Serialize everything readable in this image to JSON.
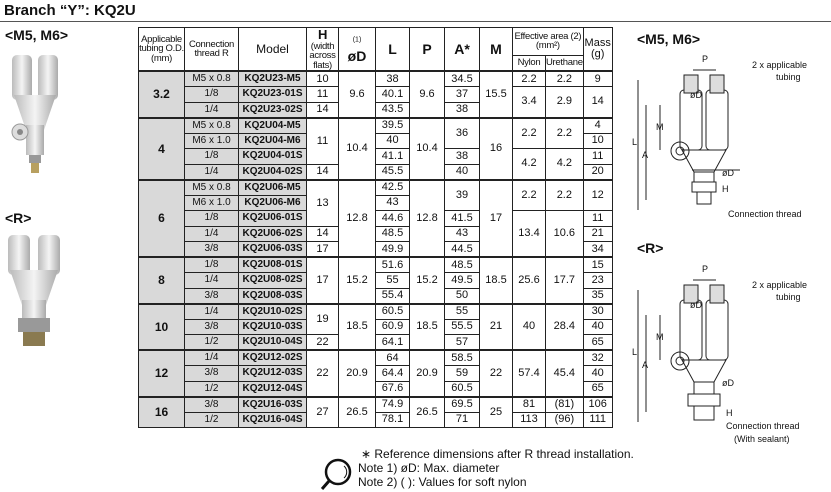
{
  "title": "Branch “Y”: KQ2U",
  "labels": {
    "m5m6": "<M5, M6>",
    "r": "<R>"
  },
  "headers": {
    "tubing": "Applicable tubing O.D. (mm)",
    "thread": "Connection thread R",
    "model": "Model",
    "h": "H",
    "h_sub": "(width across flats)",
    "d": "øD",
    "d_note": "(1)",
    "l": "L",
    "p": "P",
    "a": "A*",
    "m": "M",
    "eff": "Effective area (2) (mm²)",
    "nylon": "Nylon",
    "urethane": "Urethane",
    "mass": "Mass (g)"
  },
  "groups": [
    {
      "tubing": "3.2",
      "rows": [
        [
          "M5 x 0.8",
          "KQ2U23-M5",
          "38"
        ],
        [
          "1/8",
          "KQ2U23-01S",
          "40.1"
        ],
        [
          "1/4",
          "KQ2U23-02S",
          "43.5"
        ]
      ],
      "H": [
        [
          "10",
          1
        ],
        [
          "11",
          1
        ],
        [
          "14",
          1
        ]
      ],
      "D": [
        [
          "9.6",
          3
        ]
      ],
      "P": [
        [
          "9.6",
          3
        ]
      ],
      "A": [
        [
          "34.5",
          1
        ],
        [
          "37",
          1
        ],
        [
          "38",
          1
        ]
      ],
      "M": [
        [
          "15.5",
          3
        ]
      ],
      "nylon": [
        [
          "2.2",
          1
        ],
        [
          "3.4",
          2
        ]
      ],
      "urethane": [
        [
          "2.2",
          1
        ],
        [
          "2.9",
          2
        ]
      ],
      "mass": [
        [
          "9",
          1
        ],
        [
          "14",
          2
        ]
      ]
    },
    {
      "tubing": "4",
      "rows": [
        [
          "M5 x 0.8",
          "KQ2U04-M5",
          "39.5"
        ],
        [
          "M6 x 1.0",
          "KQ2U04-M6",
          "40"
        ],
        [
          "1/8",
          "KQ2U04-01S",
          "41.1"
        ],
        [
          "1/4",
          "KQ2U04-02S",
          "45.5"
        ]
      ],
      "H": [
        [
          "11",
          3
        ],
        [
          "14",
          1
        ]
      ],
      "D": [
        [
          "10.4",
          4
        ]
      ],
      "P": [
        [
          "10.4",
          4
        ]
      ],
      "A": [
        [
          "36",
          2
        ],
        [
          "38",
          1
        ],
        [
          "40",
          1
        ]
      ],
      "M": [
        [
          "16",
          4
        ]
      ],
      "nylon": [
        [
          "2.2",
          2
        ],
        [
          "4.2",
          2
        ]
      ],
      "urethane": [
        [
          "2.2",
          2
        ],
        [
          "4.2",
          2
        ]
      ],
      "mass": [
        [
          "4",
          1
        ],
        [
          "10",
          1
        ],
        [
          "11",
          1
        ],
        [
          "20",
          1
        ]
      ]
    },
    {
      "tubing": "6",
      "rows": [
        [
          "M5 x 0.8",
          "KQ2U06-M5",
          "42.5"
        ],
        [
          "M6 x 1.0",
          "KQ2U06-M6",
          "43"
        ],
        [
          "1/8",
          "KQ2U06-01S",
          "44.6"
        ],
        [
          "1/4",
          "KQ2U06-02S",
          "48.5"
        ],
        [
          "3/8",
          "KQ2U06-03S",
          "49.9"
        ]
      ],
      "H": [
        [
          "13",
          3
        ],
        [
          "14",
          1
        ],
        [
          "17",
          1
        ]
      ],
      "D": [
        [
          "12.8",
          5
        ]
      ],
      "P": [
        [
          "12.8",
          5
        ]
      ],
      "A": [
        [
          "39",
          2
        ],
        [
          "41.5",
          1
        ],
        [
          "43",
          1
        ],
        [
          "44.5",
          1
        ]
      ],
      "M": [
        [
          "17",
          5
        ]
      ],
      "nylon": [
        [
          "2.2",
          2
        ],
        [
          "13.4",
          3
        ]
      ],
      "urethane": [
        [
          "2.2",
          2
        ],
        [
          "10.6",
          3
        ]
      ],
      "mass": [
        [
          "12",
          2
        ],
        [
          "11",
          1
        ],
        [
          "21",
          1
        ],
        [
          "34",
          1
        ]
      ]
    },
    {
      "tubing": "8",
      "rows": [
        [
          "1/8",
          "KQ2U08-01S",
          "51.6"
        ],
        [
          "1/4",
          "KQ2U08-02S",
          "55"
        ],
        [
          "3/8",
          "KQ2U08-03S",
          "55.4"
        ]
      ],
      "H": [
        [
          "17",
          3
        ]
      ],
      "D": [
        [
          "15.2",
          3
        ]
      ],
      "P": [
        [
          "15.2",
          3
        ]
      ],
      "A": [
        [
          "48.5",
          1
        ],
        [
          "49.5",
          1
        ],
        [
          "50",
          1
        ]
      ],
      "M": [
        [
          "18.5",
          3
        ]
      ],
      "nylon": [
        [
          "25.6",
          3
        ]
      ],
      "urethane": [
        [
          "17.7",
          3
        ]
      ],
      "mass": [
        [
          "15",
          1
        ],
        [
          "23",
          1
        ],
        [
          "35",
          1
        ]
      ]
    },
    {
      "tubing": "10",
      "rows": [
        [
          "1/4",
          "KQ2U10-02S",
          "60.5"
        ],
        [
          "3/8",
          "KQ2U10-03S",
          "60.9"
        ],
        [
          "1/2",
          "KQ2U10-04S",
          "64.1"
        ]
      ],
      "H": [
        [
          "19",
          2
        ],
        [
          "22",
          1
        ]
      ],
      "D": [
        [
          "18.5",
          3
        ]
      ],
      "P": [
        [
          "18.5",
          3
        ]
      ],
      "A": [
        [
          "55",
          1
        ],
        [
          "55.5",
          1
        ],
        [
          "57",
          1
        ]
      ],
      "M": [
        [
          "21",
          3
        ]
      ],
      "nylon": [
        [
          "40",
          3
        ]
      ],
      "urethane": [
        [
          "28.4",
          3
        ]
      ],
      "mass": [
        [
          "30",
          1
        ],
        [
          "40",
          1
        ],
        [
          "65",
          1
        ]
      ]
    },
    {
      "tubing": "12",
      "rows": [
        [
          "1/4",
          "KQ2U12-02S",
          "64"
        ],
        [
          "3/8",
          "KQ2U12-03S",
          "64.4"
        ],
        [
          "1/2",
          "KQ2U12-04S",
          "67.6"
        ]
      ],
      "H": [
        [
          "22",
          3
        ]
      ],
      "D": [
        [
          "20.9",
          3
        ]
      ],
      "P": [
        [
          "20.9",
          3
        ]
      ],
      "A": [
        [
          "58.5",
          1
        ],
        [
          "59",
          1
        ],
        [
          "60.5",
          1
        ]
      ],
      "M": [
        [
          "22",
          3
        ]
      ],
      "nylon": [
        [
          "57.4",
          3
        ]
      ],
      "urethane": [
        [
          "45.4",
          3
        ]
      ],
      "mass": [
        [
          "32",
          1
        ],
        [
          "40",
          1
        ],
        [
          "65",
          1
        ]
      ]
    },
    {
      "tubing": "16",
      "rows": [
        [
          "3/8",
          "KQ2U16-03S",
          "74.9"
        ],
        [
          "1/2",
          "KQ2U16-04S",
          "78.1"
        ]
      ],
      "H": [
        [
          "27",
          2
        ]
      ],
      "D": [
        [
          "26.5",
          2
        ]
      ],
      "P": [
        [
          "26.5",
          2
        ]
      ],
      "A": [
        [
          "69.5",
          1
        ],
        [
          "71",
          1
        ]
      ],
      "M": [
        [
          "25",
          2
        ]
      ],
      "nylon": [
        [
          "81",
          1
        ],
        [
          "113",
          1
        ]
      ],
      "urethane": [
        [
          "(81)",
          1
        ],
        [
          "(96)",
          1
        ]
      ],
      "mass": [
        [
          "106",
          1
        ],
        [
          "111",
          1
        ]
      ]
    }
  ],
  "notes": {
    "ref": "∗ Reference dimensions after R thread installation.",
    "note1": "Note 1) øD: Max. diameter",
    "note2": "Note 2) ( ): Values for soft nylon"
  },
  "diagram": {
    "tubing": "2 x applicable",
    "tubing2": "tubing",
    "d": "øD",
    "p": "P",
    "m": "M",
    "a": "A",
    "l": "L",
    "h": "H",
    "conn": "Connection thread",
    "sealant": "(With sealant)"
  }
}
